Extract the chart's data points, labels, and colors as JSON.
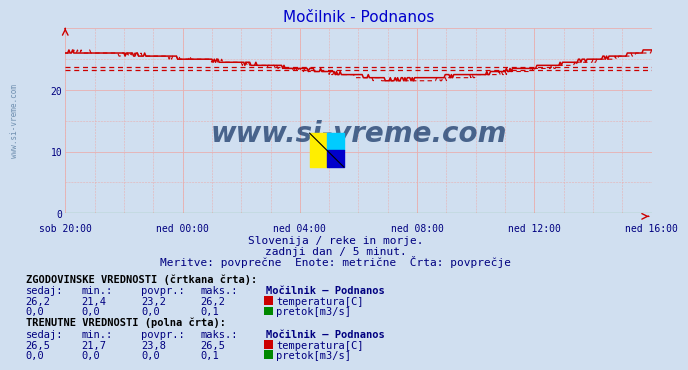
{
  "title": "Močilnik - Podnanos",
  "bg_color": "#d0dff0",
  "plot_bg_color": "#d0dff0",
  "text_color": "#000080",
  "title_color": "#0000cc",
  "xticklabels": [
    "sob 20:00",
    "ned 00:00",
    "ned 04:00",
    "ned 08:00",
    "ned 12:00",
    "ned 16:00"
  ],
  "xtick_positions": [
    0,
    96,
    192,
    288,
    384,
    480
  ],
  "ylim": [
    0,
    30
  ],
  "xlim": [
    0,
    480
  ],
  "temp_color": "#cc0000",
  "flow_color": "#008800",
  "watermark_text": "www.si-vreme.com",
  "watermark_color": "#1a3a6a",
  "left_wm_color": "#6688aa",
  "subtitle1": "Slovenija / reke in morje.",
  "subtitle2": "zadnji dan / 5 minut.",
  "subtitle3": "Meritve: povprečne  Enote: metrične  Črta: povprečje",
  "hist_label": "ZGODOVINSKE VREDNOSTI (črtkana črta):",
  "curr_label": "TRENUTNE VREDNOSTI (polna črta):",
  "legend_title": "Močilnik – Podnanos",
  "temp_avg_dashed": 23.2,
  "temp_avg_solid": 23.8,
  "n_points": 481,
  "temp_solid_start": 26.2,
  "temp_solid_min": 21.7,
  "temp_solid_end": 26.5,
  "temp_dashed_start": 26.2,
  "temp_dashed_min": 21.4,
  "temp_dashed_end": 26.2,
  "hist_sedaj": "26,2",
  "hist_min": "21,4",
  "hist_povpr": "23,2",
  "hist_maks": "26,2",
  "hist_flow_sedaj": "0,0",
  "hist_flow_min": "0,0",
  "hist_flow_povpr": "0,0",
  "hist_flow_maks": "0,1",
  "curr_sedaj": "26,5",
  "curr_min": "21,7",
  "curr_povpr": "23,8",
  "curr_maks": "26,5",
  "curr_flow_sedaj": "0,0",
  "curr_flow_min": "0,0",
  "curr_flow_povpr": "0,0",
  "curr_flow_maks": "0,1"
}
